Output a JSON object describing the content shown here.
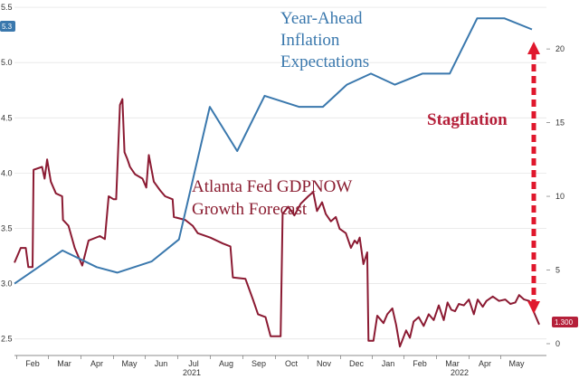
{
  "chart_data": {
    "type": "line",
    "title": "",
    "x_months": [
      "Feb",
      "Mar",
      "Apr",
      "May",
      "Jun",
      "Jul",
      "Aug",
      "Sep",
      "Oct",
      "Nov",
      "Dec",
      "Jan",
      "Feb",
      "Mar",
      "Apr",
      "May"
    ],
    "year_labels": [
      "2021",
      "2022"
    ],
    "left_axis": {
      "ylim": [
        2.35,
        5.55
      ],
      "ticks": [
        "2.5",
        "3.0",
        "3.5",
        "4.0",
        "4.5",
        "5.0",
        "5.5"
      ]
    },
    "right_axis": {
      "ylim": [
        -0.8,
        23.2
      ],
      "ticks": [
        "0",
        "5",
        "10",
        "15",
        "20"
      ]
    },
    "series": [
      {
        "name": "Year-Ahead Inflation Expectations",
        "axis": "left",
        "color": "#3a78ad",
        "points": [
          [
            0.0,
            3.0
          ],
          [
            0.7,
            3.15
          ],
          [
            1.4,
            3.3
          ],
          [
            2.4,
            3.15
          ],
          [
            3.0,
            3.1
          ],
          [
            4.0,
            3.2
          ],
          [
            4.8,
            3.4
          ],
          [
            5.7,
            4.6
          ],
          [
            6.5,
            4.2
          ],
          [
            7.3,
            4.7
          ],
          [
            8.3,
            4.6
          ],
          [
            9.0,
            4.6
          ],
          [
            9.7,
            4.8
          ],
          [
            10.4,
            4.9
          ],
          [
            11.1,
            4.8
          ],
          [
            11.9,
            4.9
          ],
          [
            12.7,
            4.9
          ],
          [
            13.5,
            5.4
          ],
          [
            14.3,
            5.4
          ],
          [
            15.1,
            5.3
          ]
        ],
        "last_value_label": "5.3"
      },
      {
        "name": "Atlanta Fed GDPNOW Growth Forecast",
        "axis": "right",
        "color": "#8b1a32",
        "points": [
          [
            0.0,
            5.5
          ],
          [
            0.25,
            6.5
          ],
          [
            0.45,
            6.5
          ],
          [
            0.55,
            5.2
          ],
          [
            0.72,
            5.2
          ],
          [
            0.76,
            11.8
          ],
          [
            1.1,
            12.0
          ],
          [
            1.2,
            11.2
          ],
          [
            1.3,
            12.5
          ],
          [
            1.45,
            11.0
          ],
          [
            1.65,
            10.2
          ],
          [
            1.9,
            10.0
          ],
          [
            1.93,
            8.4
          ],
          [
            2.15,
            8.0
          ],
          [
            2.4,
            6.5
          ],
          [
            2.7,
            5.3
          ],
          [
            2.95,
            7.0
          ],
          [
            3.4,
            7.3
          ],
          [
            3.6,
            7.1
          ],
          [
            3.75,
            10.0
          ],
          [
            3.95,
            9.8
          ],
          [
            4.05,
            9.8
          ],
          [
            4.2,
            16.2
          ],
          [
            4.3,
            16.6
          ],
          [
            4.38,
            13.0
          ],
          [
            4.5,
            12.5
          ],
          [
            4.6,
            12.0
          ],
          [
            4.8,
            11.5
          ],
          [
            5.1,
            11.2
          ],
          [
            5.25,
            10.6
          ],
          [
            5.35,
            12.8
          ],
          [
            5.55,
            11.0
          ],
          [
            5.8,
            10.4
          ],
          [
            6.0,
            10.0
          ],
          [
            6.3,
            9.8
          ],
          [
            6.35,
            8.6
          ],
          [
            6.8,
            8.4
          ],
          [
            7.1,
            8.0
          ],
          [
            7.3,
            7.5
          ],
          [
            7.8,
            7.2
          ],
          [
            8.3,
            6.8
          ],
          [
            8.6,
            6.6
          ],
          [
            8.7,
            4.5
          ],
          [
            9.2,
            4.4
          ],
          [
            9.5,
            3.0
          ],
          [
            9.7,
            2.0
          ],
          [
            10.0,
            1.8
          ],
          [
            10.2,
            0.5
          ],
          [
            10.6,
            0.5
          ],
          [
            10.68,
            8.8
          ],
          [
            10.9,
            9.3
          ],
          [
            11.15,
            8.7
          ],
          [
            11.4,
            9.5
          ],
          [
            11.7,
            10.0
          ],
          [
            11.9,
            10.3
          ],
          [
            12.05,
            9.0
          ],
          [
            12.25,
            9.6
          ],
          [
            12.4,
            8.8
          ],
          [
            12.6,
            8.3
          ],
          [
            12.8,
            8.6
          ],
          [
            12.95,
            7.8
          ],
          [
            13.2,
            7.5
          ],
          [
            13.4,
            6.5
          ],
          [
            13.55,
            7.0
          ],
          [
            13.65,
            6.8
          ],
          [
            13.75,
            7.2
          ],
          [
            13.9,
            5.4
          ],
          [
            14.05,
            6.2
          ],
          [
            14.1,
            0.2
          ],
          [
            14.3,
            0.2
          ],
          [
            14.45,
            1.9
          ],
          [
            14.7,
            1.4
          ],
          [
            14.85,
            2.0
          ],
          [
            15.05,
            2.4
          ],
          [
            15.2,
            1.3
          ],
          [
            15.35,
            -0.2
          ],
          [
            15.6,
            0.9
          ],
          [
            15.75,
            0.4
          ],
          [
            15.9,
            1.5
          ],
          [
            16.1,
            1.8
          ],
          [
            16.3,
            1.2
          ],
          [
            16.5,
            2.0
          ],
          [
            16.7,
            1.6
          ],
          [
            16.9,
            2.6
          ],
          [
            17.1,
            1.6
          ],
          [
            17.25,
            2.8
          ],
          [
            17.4,
            2.3
          ],
          [
            17.55,
            2.2
          ],
          [
            17.7,
            2.7
          ],
          [
            17.9,
            2.6
          ],
          [
            18.1,
            3.0
          ],
          [
            18.3,
            2.0
          ],
          [
            18.45,
            3.0
          ],
          [
            18.65,
            2.5
          ],
          [
            18.8,
            2.9
          ],
          [
            19.05,
            3.2
          ],
          [
            19.3,
            2.9
          ],
          [
            19.55,
            3.0
          ],
          [
            19.75,
            2.7
          ],
          [
            19.95,
            2.8
          ],
          [
            20.1,
            3.3
          ],
          [
            20.3,
            3.0
          ],
          [
            20.5,
            2.9
          ],
          [
            20.7,
            2.1
          ],
          [
            20.9,
            1.3
          ]
        ],
        "last_value_label": "1.300"
      }
    ],
    "annotations": {
      "inflation": [
        "Year-Ahead",
        "Inflation",
        "Expectations"
      ],
      "gdp": [
        "Atlanta Fed GDPNOW",
        "Growth Forecast"
      ],
      "stagflation": "Stagflation"
    },
    "colors": {
      "blue": "#3a78ad",
      "maroon": "#8b1a32",
      "stagflation": "#e0182d",
      "axis_badge": "#3a78ad",
      "gdp_badge": "#b5203a"
    }
  }
}
